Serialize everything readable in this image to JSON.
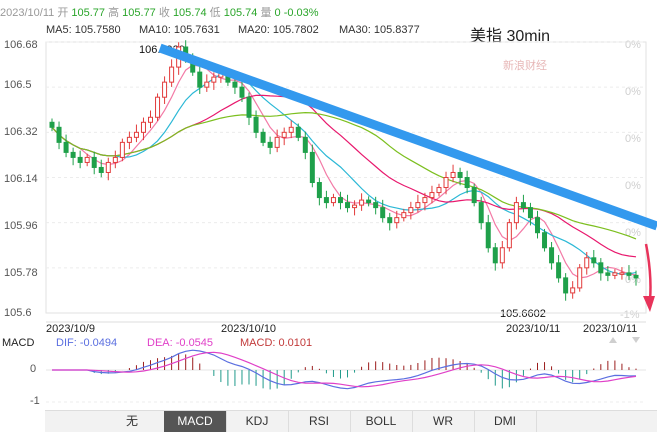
{
  "header": {
    "date": "2023/10/11",
    "open_label": "开",
    "open": "105.77",
    "high_label": "高",
    "high": "105.77",
    "close_label": "收",
    "close": "105.74",
    "low_label": "低",
    "low": "105.74",
    "vol_label": "量",
    "vol": "0",
    "change": "-0.03%"
  },
  "ma_legend": [
    {
      "label": "MA5: 105.7580",
      "color": "#f37aa6"
    },
    {
      "label": "MA10: 105.7631",
      "color": "#2bb8d6"
    },
    {
      "label": "MA20: 105.7802",
      "color": "#e8186d"
    },
    {
      "label": "MA30: 105.8377",
      "color": "#7cbf1f"
    }
  ],
  "chart_title": "美指 30min",
  "watermark": "新浪财经",
  "annotations": {
    "high": "106.6920",
    "low": "105.6602"
  },
  "macd_legend": {
    "name": "MACD",
    "dif": "DIF: -0.0494",
    "dea": "DEA: -0.0545",
    "macd": "MACD: 0.0101"
  },
  "colors": {
    "up": "#e23b3b",
    "down": "#1fa04a",
    "trendline": "#3399ee",
    "arrow": "#e8335a",
    "dif": "#5b6fe0",
    "dea": "#e040c8"
  },
  "tabs": [
    "无",
    "MACD",
    "KDJ",
    "RSI",
    "BOLL",
    "WR",
    "DMI"
  ],
  "active_tab": "MACD",
  "nav": {
    "up": "▲",
    "down": "▼"
  },
  "chart_data": {
    "type": "candlestick",
    "title": "美指 30min",
    "y_ticks": [
      "106.68",
      "106.5",
      "106.32",
      "106.14",
      "105.96",
      "105.78",
      "105.6"
    ],
    "ylim": [
      105.6,
      106.68
    ],
    "pct_ticks": [
      "0%",
      "0%",
      "0%",
      "0%",
      "0%",
      "0%",
      "-1%"
    ],
    "x_ticks": [
      "2023/10/9",
      "2023/10/10",
      "2023/10/11",
      "2023/10/11"
    ],
    "high": 106.692,
    "low": 105.6602,
    "close_series": [
      106.34,
      106.28,
      106.24,
      106.22,
      106.2,
      106.22,
      106.18,
      106.16,
      106.2,
      106.22,
      106.28,
      106.3,
      106.32,
      106.36,
      106.38,
      106.46,
      106.52,
      106.58,
      106.66,
      106.62,
      106.56,
      106.5,
      106.52,
      106.54,
      106.56,
      106.52,
      106.5,
      106.46,
      106.38,
      106.32,
      106.28,
      106.26,
      106.3,
      106.32,
      106.34,
      106.3,
      106.24,
      106.12,
      106.06,
      106.04,
      106.06,
      106.04,
      106.02,
      106.03,
      106.05,
      106.04,
      106.02,
      105.98,
      105.96,
      105.98,
      106.0,
      106.02,
      106.04,
      106.06,
      106.08,
      106.1,
      106.14,
      106.16,
      106.14,
      106.1,
      106.04,
      105.96,
      105.86,
      105.8,
      105.86,
      105.96,
      106.04,
      106.02,
      105.98,
      105.92,
      105.86,
      105.8,
      105.74,
      105.68,
      105.7,
      105.78,
      105.82,
      105.8,
      105.76,
      105.75,
      105.76,
      105.76,
      105.75,
      105.74
    ],
    "macd_axis": [
      "0",
      "-1"
    ],
    "macd_summary": {
      "dif": -0.0494,
      "dea": -0.0545,
      "macd": 0.0101
    }
  }
}
